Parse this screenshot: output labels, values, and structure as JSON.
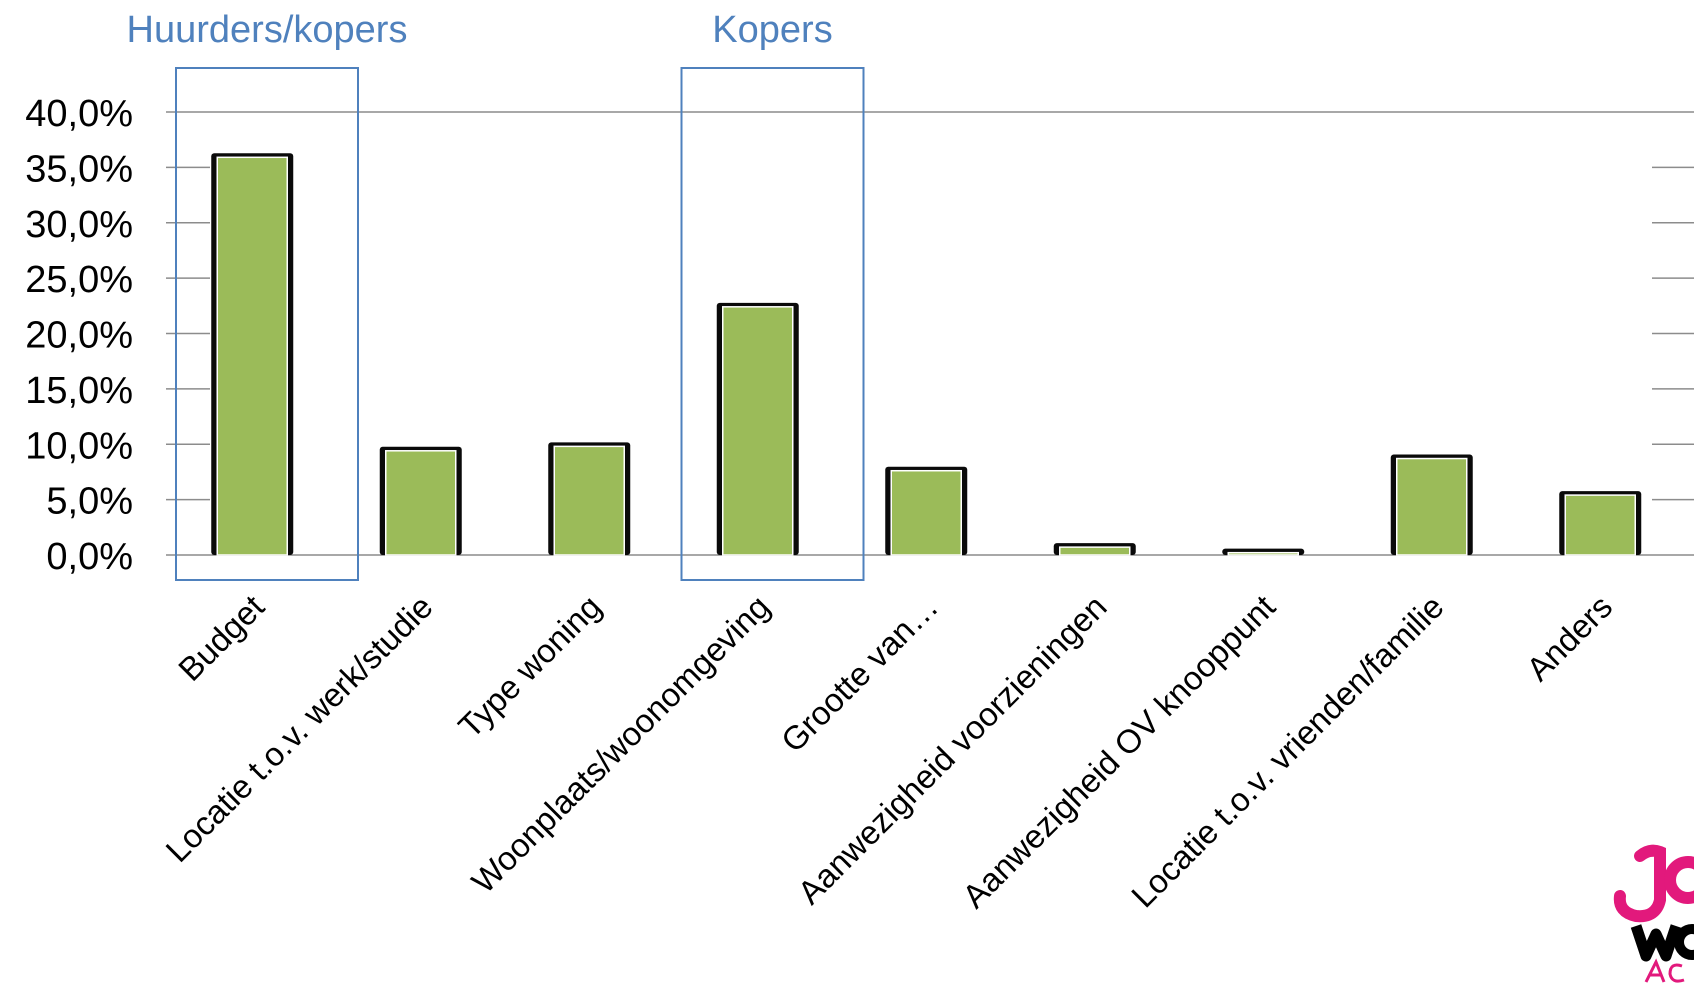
{
  "chart_data": {
    "type": "bar",
    "categories": [
      "Budget",
      "Locatie t.o.v. werk/studie",
      "Type woning",
      "Woonplaats/woonomgeving",
      "Grootte van…",
      "Aanwezigheid voorzieningen",
      "Aanwezigheid OV knooppunt",
      "Locatie t.o.v. vrienden/familie",
      "Anders"
    ],
    "values": [
      36.0,
      9.5,
      9.9,
      22.5,
      7.7,
      0.8,
      0.3,
      8.8,
      5.5
    ],
    "ylim": [
      0,
      40
    ],
    "yticks": [
      "0,0%",
      "5,0%",
      "10,0%",
      "15,0%",
      "20,0%",
      "25,0%",
      "30,0%",
      "35,0%",
      "40,0%"
    ],
    "title": "",
    "xlabel": "",
    "ylabel": "",
    "grid": true,
    "bar_color": "#9bbb59",
    "highlights": [
      {
        "label": "Huurders/kopers",
        "category": "Budget"
      },
      {
        "label": "Kopers",
        "category": "Woonplaats/woonomgeving"
      }
    ],
    "highlight_color": "#4f81bd"
  },
  "logo": {
    "text": "JONG WONEN ACHTERHOEK",
    "color_primary": "#e2197c",
    "color_secondary": "#000000"
  }
}
